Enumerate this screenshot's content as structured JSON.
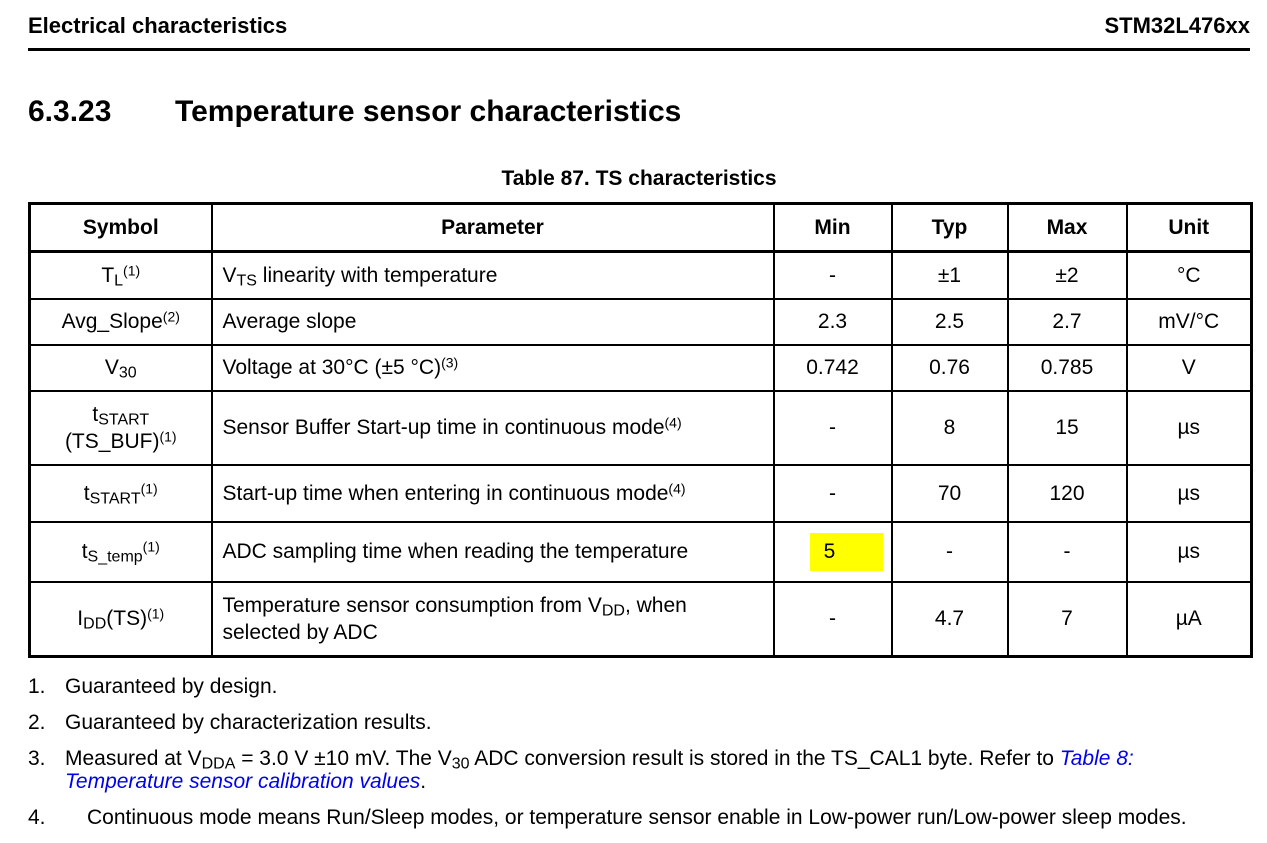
{
  "colors": {
    "highlight": "#ffff00",
    "link": "#0000ee"
  },
  "header": {
    "left": "Electrical characteristics",
    "right": "STM32L476xx"
  },
  "section": {
    "number": "6.3.23",
    "title": "Temperature sensor characteristics"
  },
  "table": {
    "title": "Table 87. TS characteristics",
    "columns": [
      "Symbol",
      "Parameter",
      "Min",
      "Typ",
      "Max",
      "Unit"
    ],
    "rows": [
      {
        "symbol": [
          {
            "t": "T"
          },
          {
            "sub": "L"
          },
          {
            "sup": "(1)"
          }
        ],
        "parameter": [
          {
            "t": "V"
          },
          {
            "sub": "TS"
          },
          {
            "t": " linearity with temperature"
          }
        ],
        "min": "-",
        "typ": "±1",
        "max": "±2",
        "unit": "°C"
      },
      {
        "symbol": [
          {
            "t": "Avg_Slope"
          },
          {
            "sup": "(2)"
          }
        ],
        "parameter": "Average slope",
        "min": "2.3",
        "typ": "2.5",
        "max": "2.7",
        "unit": "mV/°C"
      },
      {
        "symbol": [
          {
            "t": "V"
          },
          {
            "sub": "30"
          }
        ],
        "parameter": [
          {
            "t": "Voltage at 30°C (±5 °C)"
          },
          {
            "sup": "(3)"
          }
        ],
        "min": "0.742",
        "typ": "0.76",
        "max": "0.785",
        "unit": "V"
      },
      {
        "symbol": [
          {
            "t": "t"
          },
          {
            "sub": "START"
          },
          {
            "br": true
          },
          {
            "t": "(TS_BUF)"
          },
          {
            "sup": "(1)"
          }
        ],
        "parameter": [
          {
            "t": "Sensor Buffer Start-up time in continuous mode"
          },
          {
            "sup": "(4)"
          }
        ],
        "min": "-",
        "typ": "8",
        "max": "15",
        "unit": "µs"
      },
      {
        "symbol": [
          {
            "t": "t"
          },
          {
            "sub": "START"
          },
          {
            "sup": "(1)"
          }
        ],
        "parameter": [
          {
            "t": "Start-up time when entering in continuous mode"
          },
          {
            "sup": "(4)"
          }
        ],
        "min": "-",
        "typ": "70",
        "max": "120",
        "unit": "µs"
      },
      {
        "symbol": [
          {
            "t": "t"
          },
          {
            "sub": "S_temp"
          },
          {
            "sup": "(1)"
          }
        ],
        "parameter": "ADC sampling time when reading the temperature",
        "min": [
          {
            "hl": "5"
          }
        ],
        "typ": "-",
        "max": "-",
        "unit": "µs"
      },
      {
        "symbol": [
          {
            "t": "I"
          },
          {
            "sub": "DD"
          },
          {
            "t": "(TS)"
          },
          {
            "sup": "(1)"
          }
        ],
        "parameter": [
          {
            "t": "Temperature sensor consumption from V"
          },
          {
            "sub": "DD"
          },
          {
            "t": ", when"
          },
          {
            "br": true
          },
          {
            "t": "selected by ADC"
          }
        ],
        "min": "-",
        "typ": "4.7",
        "max": "7",
        "unit": "µA"
      }
    ]
  },
  "footnotes": [
    {
      "num": "1.",
      "text": "Guaranteed by design."
    },
    {
      "num": "2.",
      "text": "Guaranteed by characterization results."
    },
    {
      "num": "3.",
      "text": [
        {
          "t": "Measured at V"
        },
        {
          "sub": "DDA"
        },
        {
          "t": " = 3.0 V ±10 mV. The V"
        },
        {
          "sub": "30"
        },
        {
          "t": " ADC conversion result is stored in the TS_CAL1 byte. Refer to "
        },
        {
          "link": "Table 8:"
        },
        {
          "br": true
        },
        {
          "link": "Temperature sensor calibration values"
        },
        {
          "t": "."
        }
      ]
    },
    {
      "num": "4.",
      "text": "Continuous mode means Run/Sleep modes, or temperature sensor enable in Low-power run/Low-power sleep modes."
    }
  ]
}
